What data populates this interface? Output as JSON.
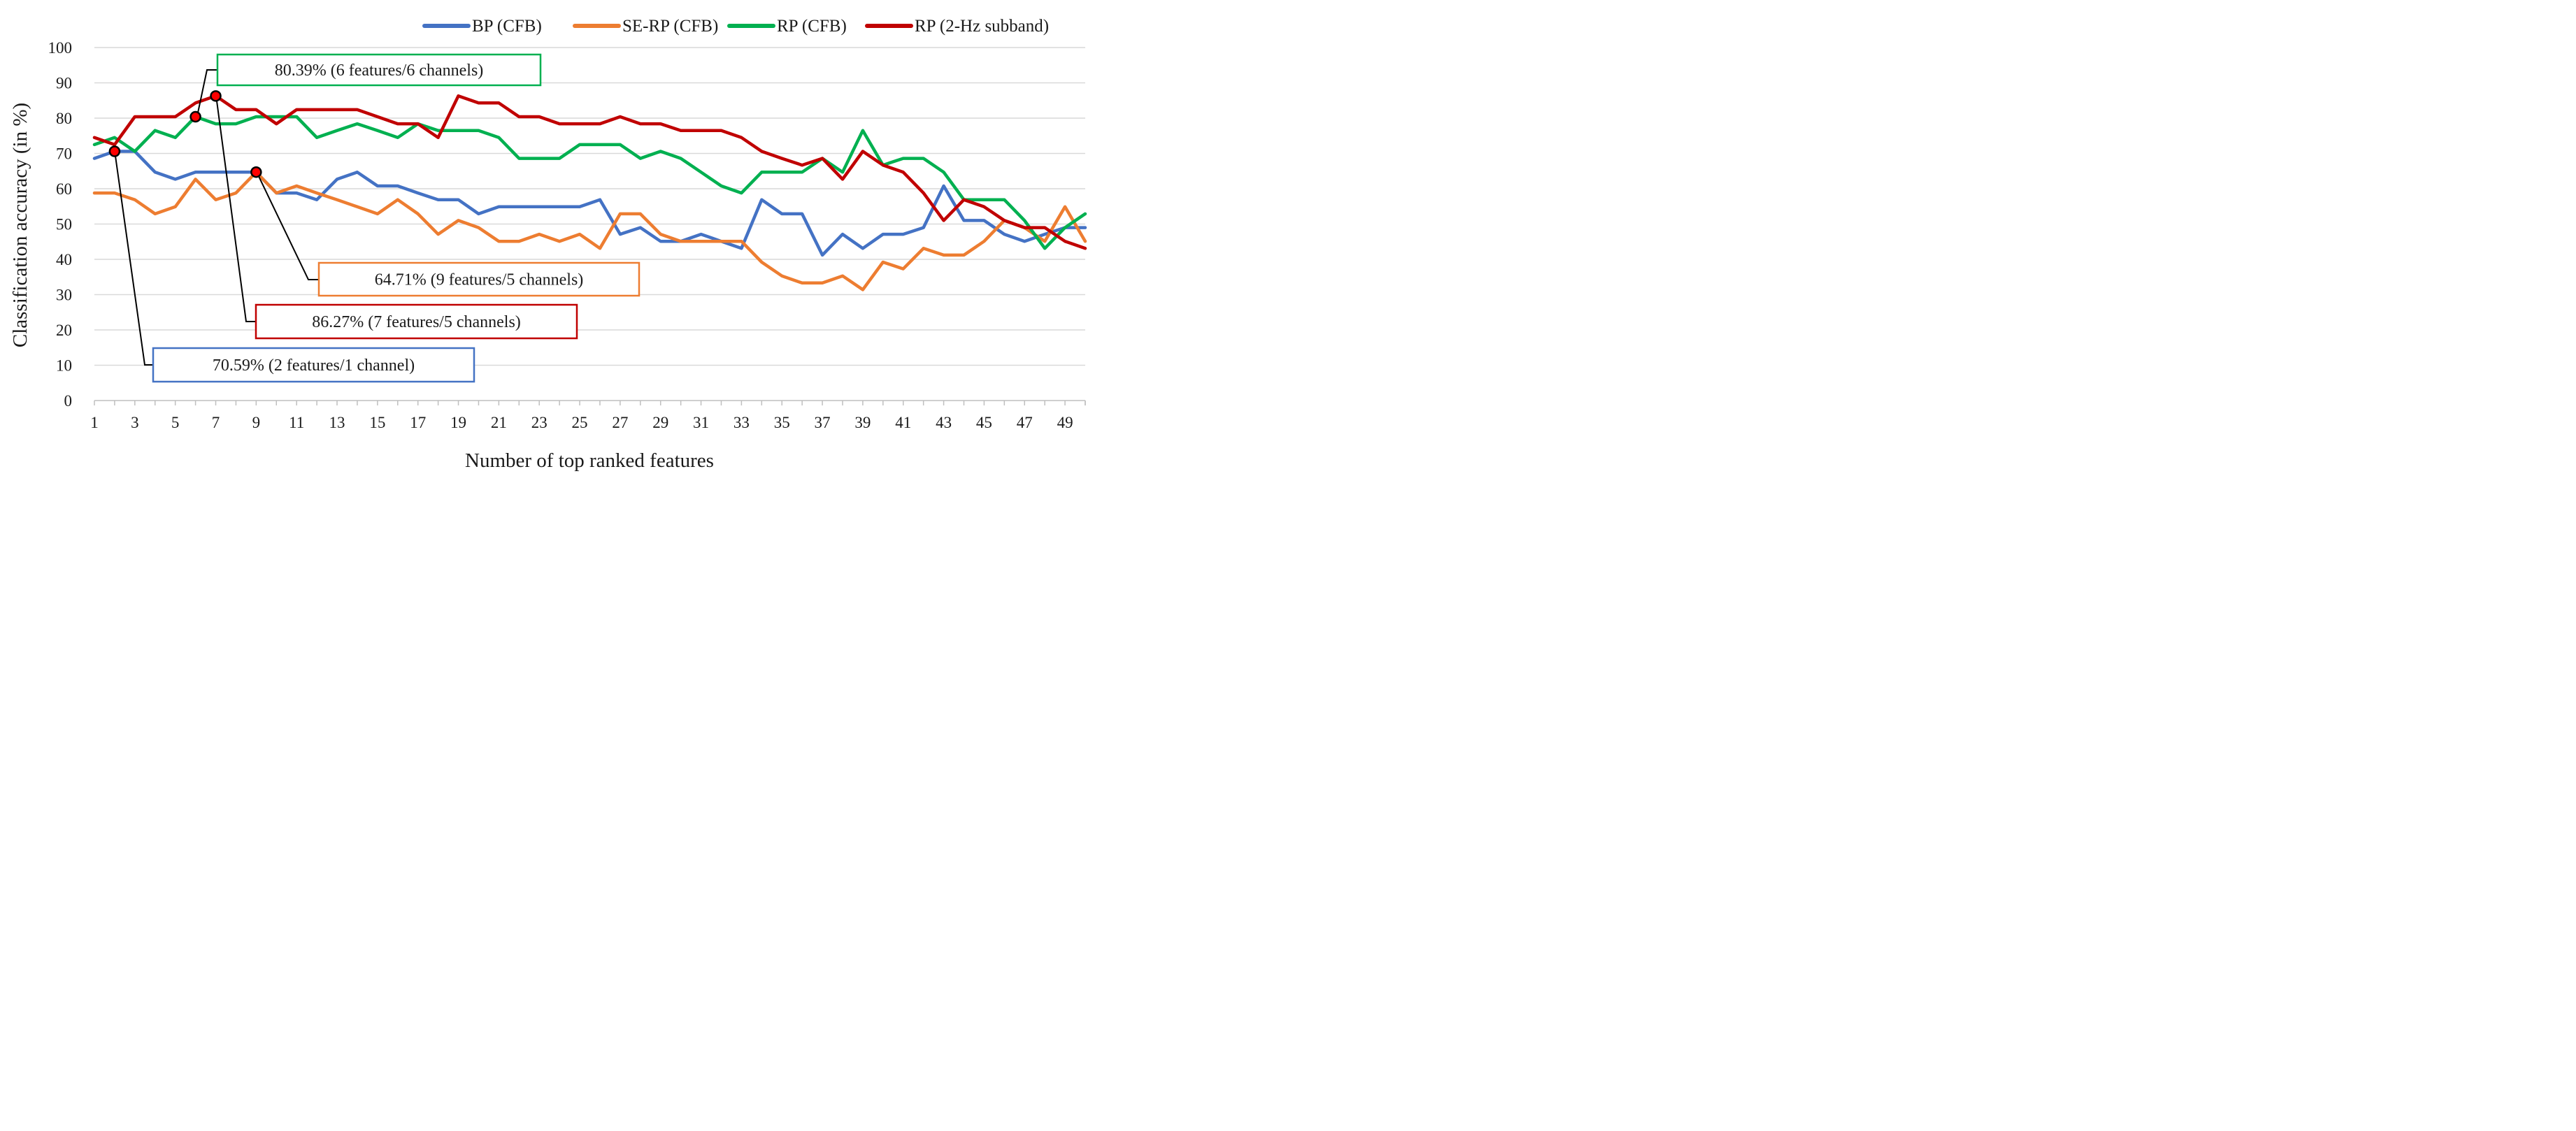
{
  "chart_data": {
    "type": "line",
    "title": "",
    "xlabel": "Number of top ranked features",
    "ylabel": "Classification accuracy (in %)",
    "xlim": [
      1,
      50
    ],
    "ylim": [
      0,
      100
    ],
    "y_ticks": [
      0,
      10,
      20,
      30,
      40,
      50,
      60,
      70,
      80,
      90,
      100
    ],
    "x_tick_labels": [
      1,
      3,
      5,
      7,
      9,
      11,
      13,
      15,
      17,
      19,
      21,
      23,
      25,
      27,
      29,
      31,
      33,
      35,
      37,
      39,
      41,
      43,
      45,
      47,
      49
    ],
    "grid": true,
    "legend_position": "top-right",
    "x": [
      1,
      2,
      3,
      4,
      5,
      6,
      7,
      8,
      9,
      10,
      11,
      12,
      13,
      14,
      15,
      16,
      17,
      18,
      19,
      20,
      21,
      22,
      23,
      24,
      25,
      26,
      27,
      28,
      29,
      30,
      31,
      32,
      33,
      34,
      35,
      36,
      37,
      38,
      39,
      40,
      41,
      42,
      43,
      44,
      45,
      46,
      47,
      48,
      49,
      50
    ],
    "series": [
      {
        "name": "BP (CFB)",
        "color": "#4472c4",
        "values": [
          68.6,
          70.6,
          70.6,
          64.7,
          62.7,
          64.7,
          64.7,
          64.7,
          64.7,
          58.8,
          58.8,
          56.9,
          62.7,
          64.7,
          60.8,
          60.8,
          58.8,
          56.9,
          56.9,
          52.9,
          54.9,
          54.9,
          54.9,
          54.9,
          54.9,
          56.9,
          47.1,
          49.0,
          45.1,
          45.1,
          47.1,
          45.1,
          43.1,
          56.9,
          52.9,
          52.9,
          41.2,
          47.1,
          43.1,
          47.1,
          47.1,
          49.0,
          60.8,
          51.0,
          51.0,
          47.1,
          45.1,
          47.1,
          49.0,
          49.0
        ]
      },
      {
        "name": "SE-RP (CFB)",
        "color": "#ed7d31",
        "values": [
          58.8,
          58.8,
          56.9,
          52.9,
          54.9,
          62.7,
          56.9,
          58.8,
          64.7,
          58.8,
          60.8,
          58.8,
          56.9,
          54.9,
          52.9,
          56.9,
          52.9,
          47.1,
          51.0,
          49.0,
          45.1,
          45.1,
          47.1,
          45.1,
          47.1,
          43.1,
          52.9,
          52.9,
          47.1,
          45.1,
          45.1,
          45.1,
          45.1,
          39.2,
          35.3,
          33.3,
          33.3,
          35.3,
          31.4,
          39.2,
          37.3,
          43.1,
          41.2,
          41.2,
          45.1,
          51.0,
          49.0,
          45.1,
          54.9,
          45.1
        ]
      },
      {
        "name": "RP (CFB)",
        "color": "#00b050",
        "values": [
          72.5,
          74.5,
          70.6,
          76.5,
          74.5,
          80.4,
          78.4,
          78.4,
          80.4,
          80.4,
          80.4,
          74.5,
          76.5,
          78.4,
          76.5,
          74.5,
          78.4,
          76.5,
          76.5,
          76.5,
          74.5,
          68.6,
          68.6,
          68.6,
          72.5,
          72.5,
          72.5,
          68.6,
          70.6,
          68.6,
          64.7,
          60.8,
          58.8,
          64.7,
          64.7,
          64.7,
          68.6,
          64.7,
          76.5,
          66.7,
          68.6,
          68.6,
          64.7,
          56.9,
          56.9,
          56.9,
          51.0,
          43.1,
          49.0,
          52.9
        ]
      },
      {
        "name": "RP (2-Hz subband)",
        "color": "#c00000",
        "values": [
          74.5,
          72.5,
          80.4,
          80.4,
          80.4,
          84.3,
          86.3,
          82.4,
          82.4,
          78.4,
          82.4,
          82.4,
          82.4,
          82.4,
          80.4,
          78.4,
          78.4,
          74.5,
          86.3,
          84.3,
          84.3,
          80.4,
          80.4,
          78.4,
          78.4,
          78.4,
          80.4,
          78.4,
          78.4,
          76.5,
          76.5,
          76.5,
          74.5,
          70.6,
          68.6,
          66.7,
          68.6,
          62.7,
          70.6,
          66.7,
          64.7,
          58.8,
          51.0,
          56.9,
          54.9,
          51.0,
          49.0,
          49.0,
          45.1,
          43.1
        ]
      }
    ],
    "annotations": [
      {
        "text": "80.39% (6 features/6 channels)",
        "series": "RP (CFB)",
        "x": 6,
        "y": 80.39,
        "box_color": "#00b050"
      },
      {
        "text": "64.71% (9 features/5 channels)",
        "series": "SE-RP (CFB)",
        "x": 9,
        "y": 64.71,
        "box_color": "#ed7d31"
      },
      {
        "text": "86.27% (7 features/5 channels)",
        "series": "RP (2-Hz subband)",
        "x": 7,
        "y": 86.27,
        "box_color": "#c00000"
      },
      {
        "text": "70.59% (2 features/1 channel)",
        "series": "BP (CFB)",
        "x": 2,
        "y": 70.59,
        "box_color": "#4472c4"
      }
    ]
  }
}
